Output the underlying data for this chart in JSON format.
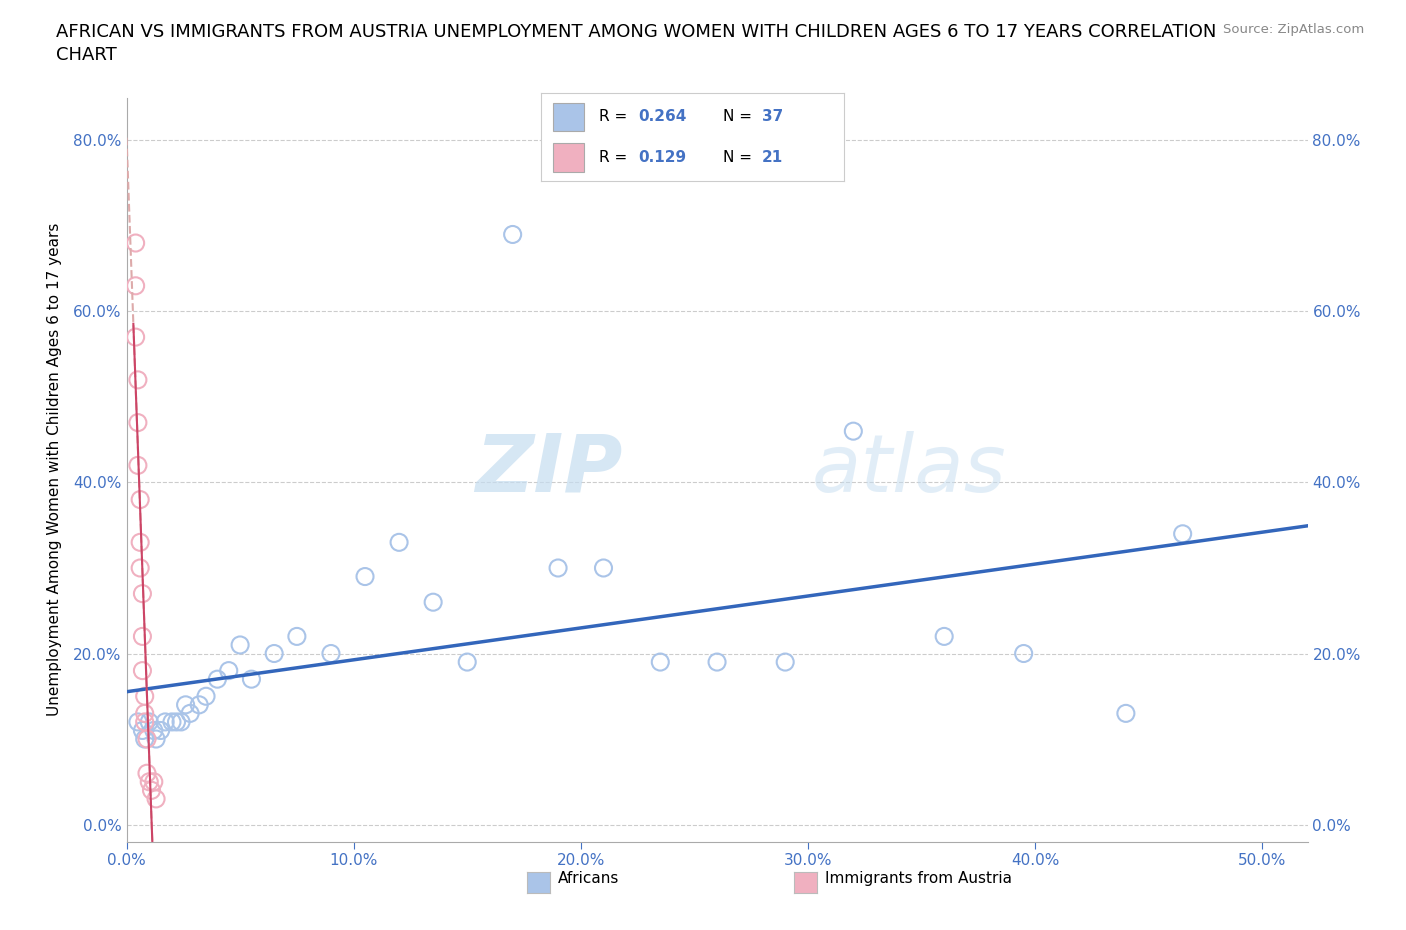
{
  "title_line1": "AFRICAN VS IMMIGRANTS FROM AUSTRIA UNEMPLOYMENT AMONG WOMEN WITH CHILDREN AGES 6 TO 17 YEARS CORRELATION",
  "title_line2": "CHART",
  "source": "Source: ZipAtlas.com",
  "ylabel": "Unemployment Among Women with Children Ages 6 to 17 years",
  "xlim": [
    0.0,
    0.52
  ],
  "ylim": [
    -0.02,
    0.85
  ],
  "x_tick_vals": [
    0.0,
    0.1,
    0.2,
    0.3,
    0.4,
    0.5
  ],
  "y_tick_vals": [
    0.0,
    0.2,
    0.4,
    0.6,
    0.8
  ],
  "africans_x": [
    0.005,
    0.007,
    0.008,
    0.01,
    0.012,
    0.013,
    0.015,
    0.017,
    0.02,
    0.022,
    0.024,
    0.026,
    0.028,
    0.032,
    0.035,
    0.04,
    0.045,
    0.05,
    0.055,
    0.065,
    0.075,
    0.09,
    0.105,
    0.12,
    0.135,
    0.15,
    0.17,
    0.19,
    0.21,
    0.235,
    0.26,
    0.29,
    0.32,
    0.36,
    0.395,
    0.44,
    0.465
  ],
  "africans_y": [
    0.12,
    0.11,
    0.1,
    0.12,
    0.11,
    0.1,
    0.11,
    0.12,
    0.12,
    0.12,
    0.12,
    0.14,
    0.13,
    0.14,
    0.15,
    0.17,
    0.18,
    0.21,
    0.17,
    0.2,
    0.22,
    0.2,
    0.29,
    0.33,
    0.26,
    0.19,
    0.69,
    0.3,
    0.3,
    0.19,
    0.19,
    0.19,
    0.46,
    0.22,
    0.2,
    0.13,
    0.34
  ],
  "austria_x": [
    0.004,
    0.004,
    0.004,
    0.005,
    0.005,
    0.005,
    0.006,
    0.006,
    0.006,
    0.007,
    0.007,
    0.007,
    0.008,
    0.008,
    0.008,
    0.009,
    0.009,
    0.01,
    0.011,
    0.012,
    0.013
  ],
  "austria_y": [
    0.68,
    0.63,
    0.57,
    0.52,
    0.47,
    0.42,
    0.38,
    0.33,
    0.3,
    0.27,
    0.22,
    0.18,
    0.15,
    0.13,
    0.12,
    0.1,
    0.06,
    0.05,
    0.04,
    0.05,
    0.03
  ],
  "africans_R": 0.264,
  "africans_N": 37,
  "austria_R": 0.129,
  "austria_N": 21,
  "africans_color": "#aac4e8",
  "austria_color": "#f0b0c0",
  "africans_line_color": "#3366bb",
  "austria_line_color": "#cc4466",
  "austria_trend_color": "#ddaaaa",
  "grid_color": "#cccccc",
  "watermark_zip": "ZIP",
  "watermark_atlas": "atlas",
  "legend_labels": [
    "Africans",
    "Immigrants from Austria"
  ]
}
